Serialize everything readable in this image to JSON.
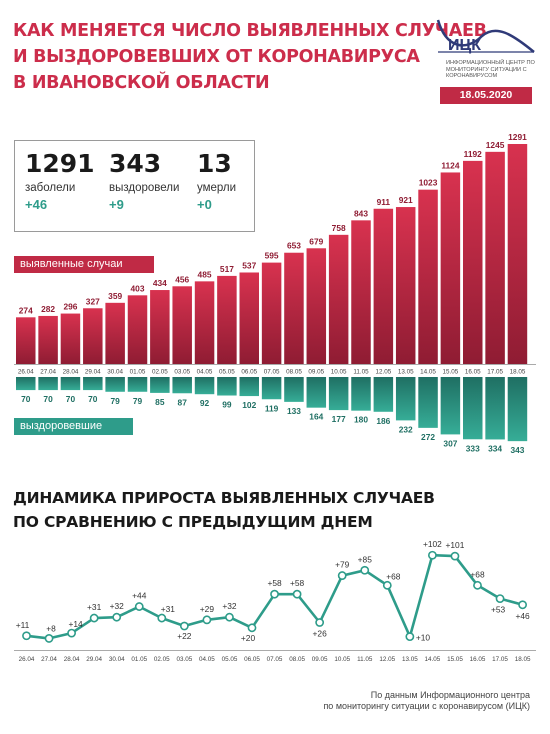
{
  "title": {
    "line1": "Как меняется число выявленных случаев",
    "line2": "и выздоровевших от коронавируса",
    "line3": "в Ивановской области"
  },
  "logo": {
    "name": "ИЦК",
    "subtitle": "Информационный центр по мониторингу ситуации с коронавирусом"
  },
  "date": "18.05.2020",
  "stats": [
    {
      "number": "1291",
      "label": "заболели",
      "delta": "+46"
    },
    {
      "number": "343",
      "label": "выздоровели",
      "delta": "+9"
    },
    {
      "number": "13",
      "label": "умерли",
      "delta": "+0"
    }
  ],
  "tags": {
    "confirmed": "выявленные случаи",
    "recovered": "выздоровевшие"
  },
  "section2": {
    "line1": "Динамика прироста выявленных случаев",
    "line2": "по сравнению с предыдущим днем"
  },
  "source_line1": "По данным Информационного центра",
  "source_line2": "по мониторингу ситуации с коронавирусом (ИЦК)",
  "colors": {
    "red": "#c02a45",
    "red_dark": "#8f1c33",
    "teal": "#2e9c8a",
    "teal_dark": "#1f6f63",
    "grid_line": "#aaaaaa"
  },
  "chart_data": [
    {
      "type": "bar",
      "categories": [
        "26.04",
        "27.04",
        "28.04",
        "29.04",
        "30.04",
        "01.05",
        "02.05",
        "03.05",
        "04.05",
        "05.05",
        "06.05",
        "07.05",
        "08.05",
        "09.05",
        "10.05",
        "11.05",
        "12.05",
        "13.05",
        "14.05",
        "15.05",
        "16.05",
        "17.05",
        "18.05"
      ],
      "series": [
        {
          "name": "выявленные случаи",
          "values": [
            274,
            282,
            296,
            327,
            359,
            403,
            434,
            456,
            485,
            517,
            537,
            595,
            653,
            679,
            758,
            843,
            911,
            921,
            1023,
            1124,
            1192,
            1245,
            1291
          ]
        },
        {
          "name": "выздоровевшие",
          "values": [
            70,
            70,
            70,
            70,
            79,
            79,
            85,
            87,
            92,
            99,
            102,
            119,
            133,
            164,
            177,
            180,
            186,
            232,
            272,
            307,
            333,
            334,
            343
          ]
        }
      ]
    },
    {
      "type": "line",
      "categories": [
        "26.04",
        "27.04",
        "28.04",
        "29.04",
        "30.04",
        "01.05",
        "02.05",
        "03.05",
        "04.05",
        "05.05",
        "06.05",
        "07.05",
        "08.05",
        "09.05",
        "10.05",
        "11.05",
        "12.05",
        "13.05",
        "14.05",
        "15.05",
        "16.05",
        "17.05",
        "18.05"
      ],
      "labels": [
        "+11",
        "+8",
        "+14",
        "+31",
        "+32",
        "+44",
        "+31",
        "+22",
        "+29",
        "+32",
        "+20",
        "+58",
        "+58",
        "+26",
        "+79",
        "+85",
        "+68",
        "+10",
        "+102",
        "+101",
        "+68",
        "+53",
        "+46"
      ],
      "values": [
        11,
        8,
        14,
        31,
        32,
        44,
        31,
        22,
        29,
        32,
        20,
        58,
        58,
        26,
        79,
        85,
        68,
        10,
        102,
        101,
        68,
        53,
        46
      ]
    }
  ]
}
